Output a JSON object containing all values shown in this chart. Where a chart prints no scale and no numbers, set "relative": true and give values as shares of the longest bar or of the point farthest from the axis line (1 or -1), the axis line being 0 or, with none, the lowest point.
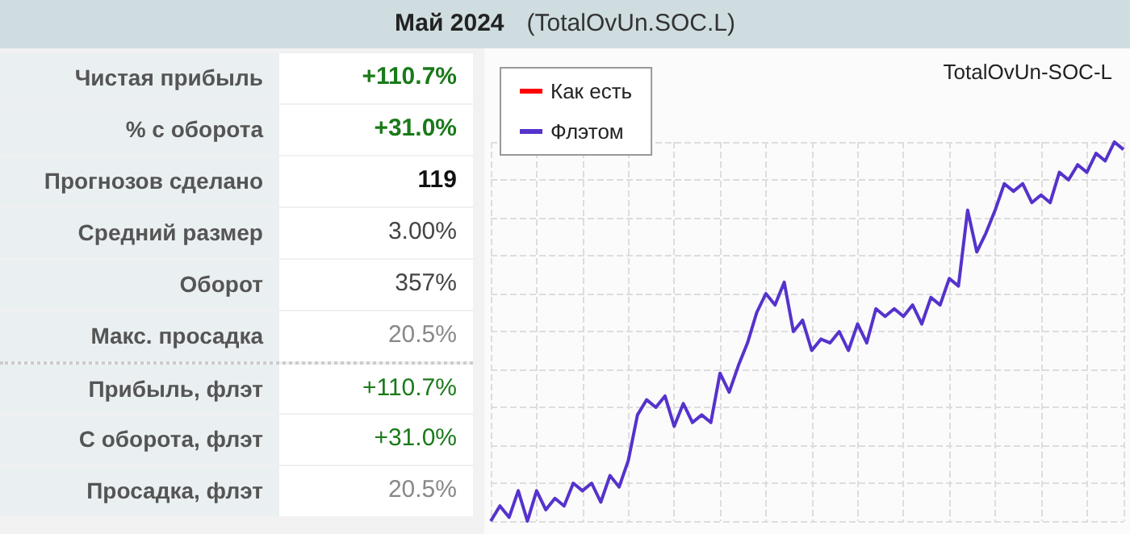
{
  "chart_data": [
    {
      "type": "other",
      "title": "Май 2024",
      "subtitle": "(TotalOvUn.SOC.L)",
      "annotations": [
        "Чистая прибыль",
        "+110.7%",
        "% с оборота",
        "+31.0%",
        "Прогнозов сделано",
        "119",
        "Средний размер",
        "3.00%",
        "Оборот",
        "357%",
        "Макс. просадка",
        "20.5%",
        "Прибыль, флэт",
        "+110.7%",
        "С оборота, флэт",
        "+31.0%",
        "Просадка, флэт",
        "20.5%"
      ]
    },
    {
      "type": "line",
      "title": "TotalOvUn-SOC-L",
      "relative": true,
      "grid": true,
      "legend": "top left",
      "marker": "none",
      "line_style": "solid",
      "categories": [
        null,
        null,
        null,
        null,
        null,
        null,
        null,
        null,
        null,
        null,
        null,
        null,
        null,
        null,
        null,
        null,
        null,
        null,
        null,
        null,
        null,
        null,
        null,
        null,
        null,
        null,
        null,
        null,
        null,
        null,
        null,
        null,
        null,
        null,
        null,
        null,
        null,
        null,
        null,
        null,
        null,
        null,
        null,
        null,
        null,
        null,
        null,
        null,
        null,
        null,
        null,
        null,
        null,
        null,
        null,
        null,
        null,
        null,
        null,
        null,
        null,
        null,
        null,
        null,
        null,
        null,
        null,
        null,
        null,
        null
      ],
      "series": [
        {
          "name": "Как есть",
          "color": "#ff0000",
          "values": [
            null,
            null,
            null,
            null,
            null,
            null,
            null,
            null,
            null,
            null,
            null,
            null,
            null,
            null,
            null,
            null,
            null,
            null,
            null,
            null,
            null,
            null,
            null,
            null,
            null,
            null,
            null,
            null,
            null,
            null,
            null,
            null,
            null,
            null,
            null,
            null,
            null,
            null,
            null,
            null,
            null,
            null,
            null,
            null,
            null,
            null,
            null,
            null,
            null,
            null,
            null,
            null,
            null,
            null,
            null,
            null,
            null,
            null,
            null,
            null,
            null,
            null,
            null,
            null,
            null,
            null,
            null,
            null,
            null,
            null
          ]
        },
        {
          "name": "Флэтом",
          "color": "#5533cc",
          "values": [
            0.0,
            0.04,
            0.01,
            0.08,
            0.0,
            0.08,
            0.03,
            0.06,
            0.04,
            0.1,
            0.08,
            0.1,
            0.05,
            0.12,
            0.09,
            0.16,
            0.28,
            0.32,
            0.3,
            0.33,
            0.25,
            0.31,
            0.26,
            0.28,
            0.26,
            0.39,
            0.34,
            0.41,
            0.47,
            0.55,
            0.6,
            0.57,
            0.63,
            0.5,
            0.53,
            0.45,
            0.48,
            0.47,
            0.5,
            0.45,
            0.52,
            0.47,
            0.56,
            0.54,
            0.56,
            0.54,
            0.57,
            0.52,
            0.59,
            0.57,
            0.64,
            0.62,
            0.82,
            0.71,
            0.76,
            0.82,
            0.89,
            0.87,
            0.89,
            0.84,
            0.86,
            0.84,
            0.92,
            0.9,
            0.94,
            0.92,
            0.97,
            0.95,
            1.0,
            0.98
          ]
        }
      ]
    }
  ]
}
